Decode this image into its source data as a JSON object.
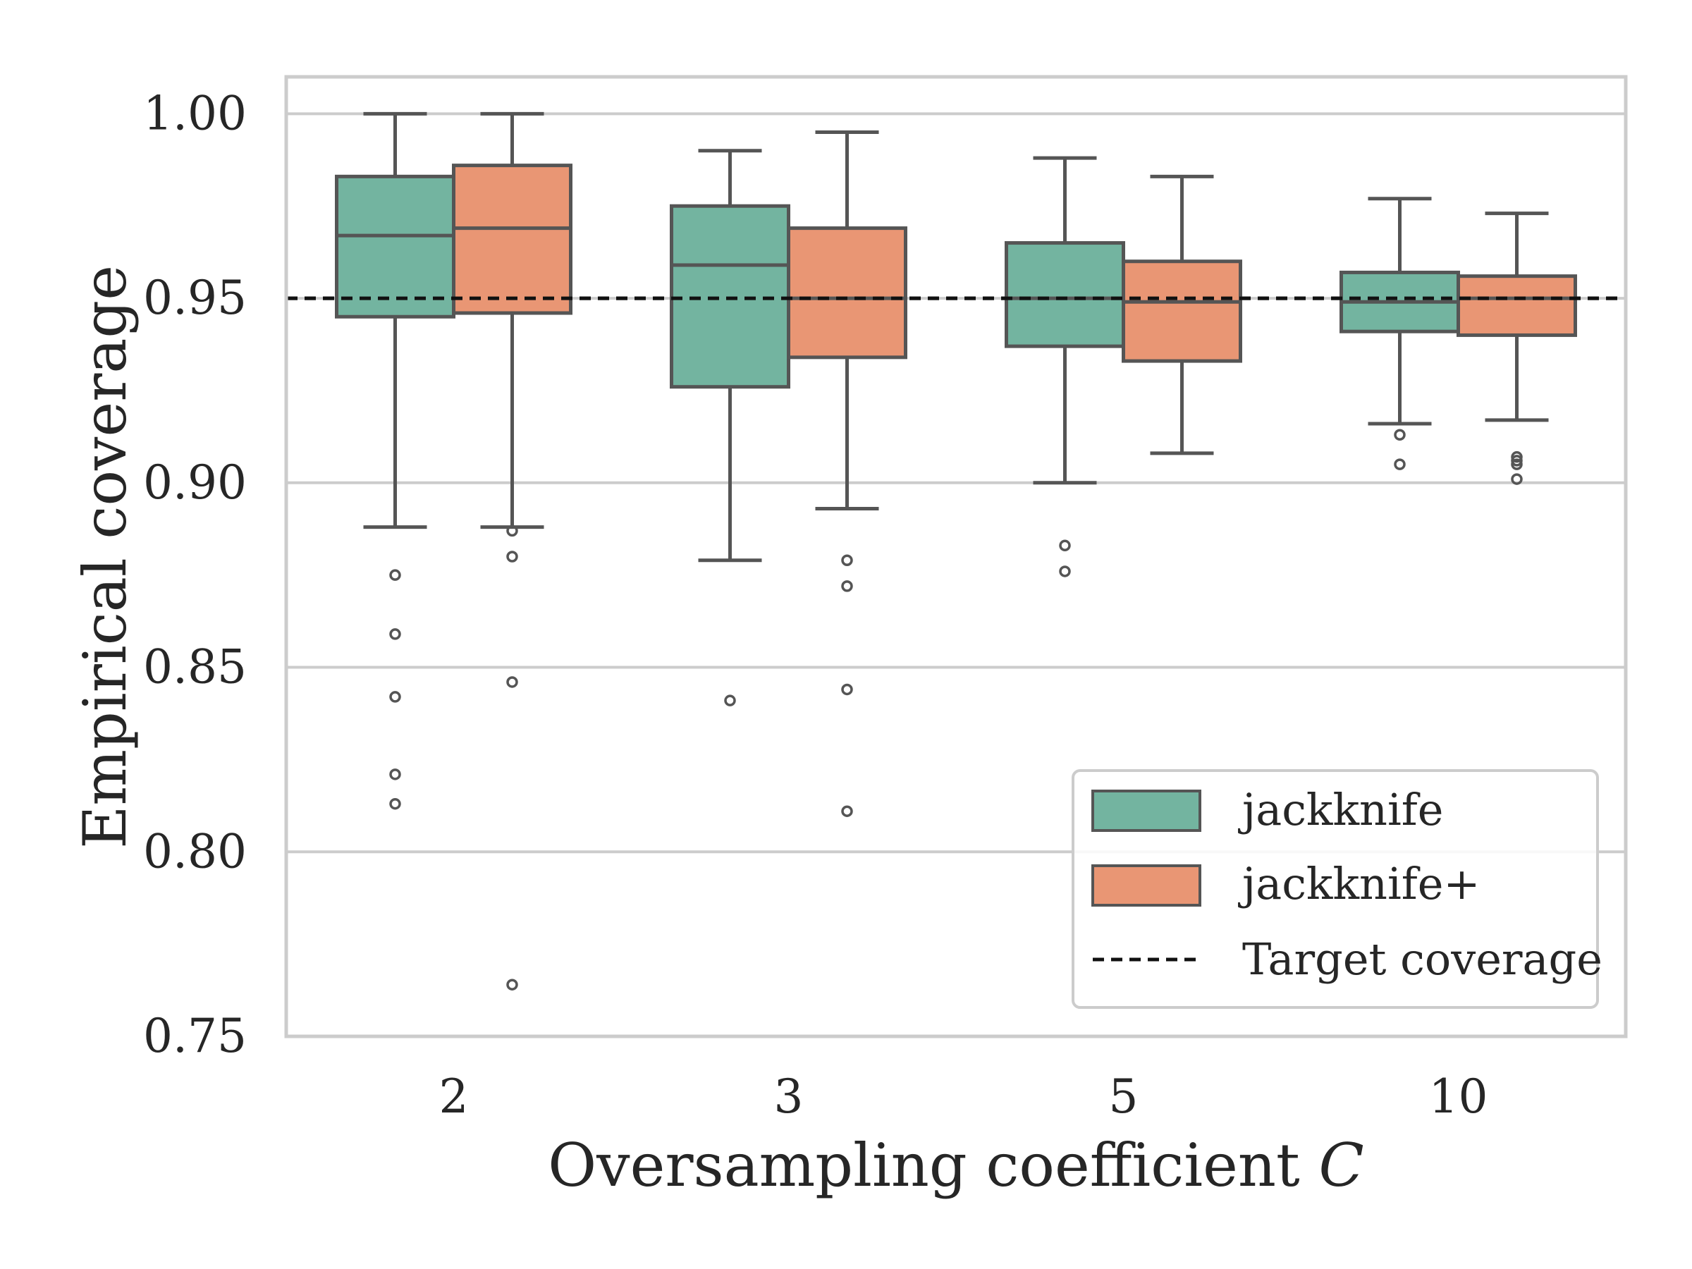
{
  "chart_data": {
    "type": "boxplot",
    "title": "",
    "xlabel": "Oversampling coefficient C",
    "xlabel_main": "Oversampling coefficient ",
    "xlabel_var": "C",
    "ylabel": "Empirical coverage",
    "ylim": [
      0.75,
      1.01
    ],
    "yticks": [
      "0.75",
      "0.80",
      "0.85",
      "0.90",
      "0.95",
      "1.00"
    ],
    "categories": [
      "2",
      "3",
      "5",
      "10"
    ],
    "grid": true,
    "target_coverage": 0.95,
    "legend_position": "lower-right",
    "series": [
      {
        "name": "jackknife",
        "color": "#73b4a0",
        "boxes": [
          {
            "whislo": 0.888,
            "q1": 0.945,
            "med": 0.967,
            "q3": 0.983,
            "whishi": 1.0,
            "fliers": [
              0.875,
              0.859,
              0.842,
              0.821,
              0.813
            ]
          },
          {
            "whislo": 0.879,
            "q1": 0.926,
            "med": 0.959,
            "q3": 0.975,
            "whishi": 0.99,
            "fliers": [
              0.841
            ]
          },
          {
            "whislo": 0.9,
            "q1": 0.937,
            "med": 0.95,
            "q3": 0.965,
            "whishi": 0.988,
            "fliers": [
              0.883,
              0.876
            ]
          },
          {
            "whislo": 0.916,
            "q1": 0.941,
            "med": 0.949,
            "q3": 0.957,
            "whishi": 0.977,
            "fliers": [
              0.913,
              0.905
            ]
          }
        ]
      },
      {
        "name": "jackknife+",
        "color": "#e99674",
        "boxes": [
          {
            "whislo": 0.888,
            "q1": 0.946,
            "med": 0.969,
            "q3": 0.986,
            "whishi": 1.0,
            "fliers": [
              0.887,
              0.88,
              0.846,
              0.764
            ]
          },
          {
            "whislo": 0.893,
            "q1": 0.934,
            "med": 0.95,
            "q3": 0.969,
            "whishi": 0.995,
            "fliers": [
              0.879,
              0.872,
              0.844,
              0.811
            ]
          },
          {
            "whislo": 0.908,
            "q1": 0.933,
            "med": 0.949,
            "q3": 0.96,
            "whishi": 0.983,
            "fliers": []
          },
          {
            "whislo": 0.917,
            "q1": 0.94,
            "med": 0.95,
            "q3": 0.956,
            "whishi": 0.973,
            "fliers": [
              0.907,
              0.906,
              0.905,
              0.901
            ]
          }
        ]
      }
    ],
    "legend": [
      "jackknife",
      "jackknife+",
      "Target coverage"
    ]
  }
}
